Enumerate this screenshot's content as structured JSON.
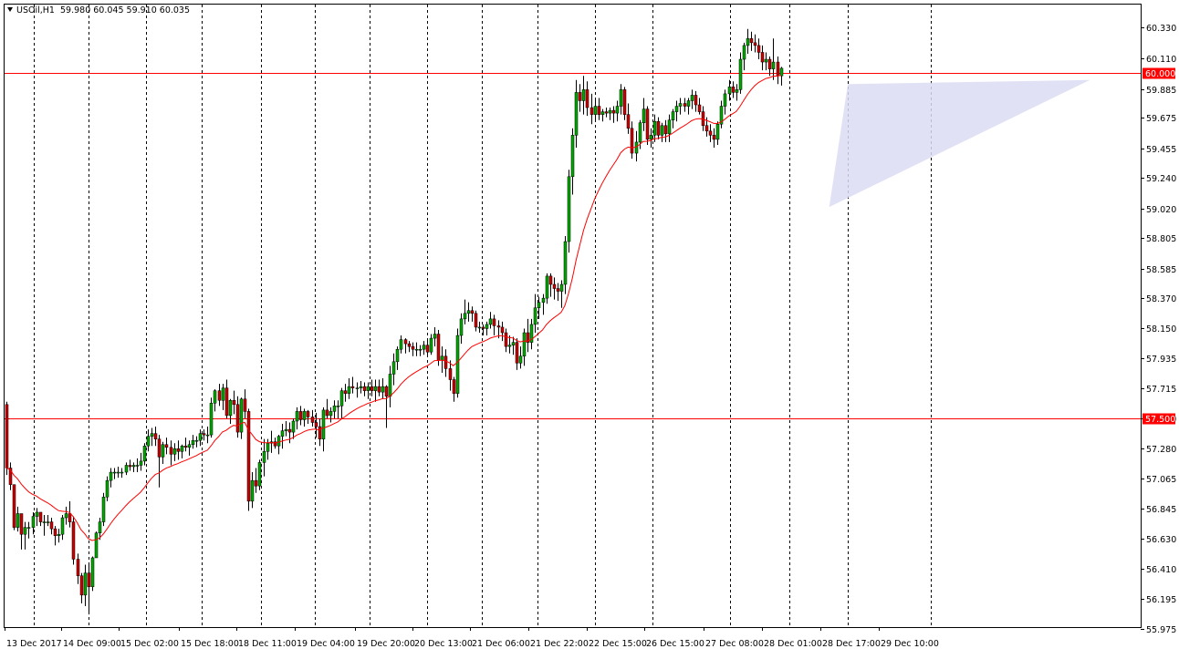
{
  "header": {
    "symbol": "USOil,H1",
    "ohlc": "59.980 60.045 59.910 60.035"
  },
  "colors": {
    "background": "#ffffff",
    "frame": "#000000",
    "bull_body": "#00a800",
    "bear_body": "#cc0000",
    "wick": "#000000",
    "moving_average": "#ff0000",
    "horizontal_line": "#ff0000",
    "triangle_fill": "#dcdcf5",
    "level_label_bg": "#ff0000",
    "level_label_text": "#ffffff"
  },
  "chart_data": {
    "type": "candlestick",
    "ylim": [
      55.975,
      60.45
    ],
    "y_ticks": [
      "60.330",
      "60.110",
      "59.885",
      "59.675",
      "59.455",
      "59.240",
      "59.020",
      "58.805",
      "58.585",
      "58.370",
      "58.150",
      "57.935",
      "57.715",
      "57.500",
      "57.280",
      "57.065",
      "56.845",
      "56.630",
      "56.410",
      "56.195",
      "55.975"
    ],
    "x_labels": [
      "13 Dec 2017",
      "14 Dec 09:00",
      "15 Dec 02:00",
      "15 Dec 18:00",
      "18 Dec 11:00",
      "19 Dec 04:00",
      "19 Dec 20:00",
      "20 Dec 13:00",
      "21 Dec 06:00",
      "21 Dec 22:00",
      "22 Dec 15:00",
      "26 Dec 15:00",
      "27 Dec 08:00",
      "28 Dec 01:00",
      "28 Dec 17:00",
      "29 Dec 10:00"
    ],
    "grid": "vertical dashed",
    "horizontal_levels": [
      {
        "value": 60.0,
        "label": "60.000"
      },
      {
        "value": 57.5,
        "label": "57.500"
      }
    ],
    "price_label_hidden": "60.035",
    "triangle": [
      [
        221,
        59.03
      ],
      [
        226,
        59.92
      ],
      [
        291,
        59.95
      ]
    ],
    "ma_period": 20,
    "candles": [
      [
        57.6,
        57.62,
        57.09,
        57.14
      ],
      [
        57.14,
        57.18,
        56.98,
        57.02
      ],
      [
        57.02,
        57.02,
        56.69,
        56.71
      ],
      [
        56.71,
        56.86,
        56.68,
        56.81
      ],
      [
        56.81,
        56.81,
        56.55,
        56.66
      ],
      [
        56.66,
        56.75,
        56.55,
        56.71
      ],
      [
        56.71,
        56.75,
        56.63,
        56.71
      ],
      [
        56.71,
        56.82,
        56.66,
        56.79
      ],
      [
        56.79,
        56.85,
        56.72,
        56.82
      ],
      [
        56.82,
        56.82,
        56.72,
        56.75
      ],
      [
        56.75,
        56.8,
        56.65,
        56.75
      ],
      [
        56.75,
        56.8,
        56.72,
        56.75
      ],
      [
        56.75,
        56.78,
        56.66,
        56.7
      ],
      [
        56.7,
        56.72,
        56.58,
        56.65
      ],
      [
        56.65,
        56.7,
        56.6,
        56.66
      ],
      [
        56.66,
        56.8,
        56.62,
        56.78
      ],
      [
        56.78,
        56.86,
        56.73,
        56.81
      ],
      [
        56.81,
        56.9,
        56.71,
        56.75
      ],
      [
        56.75,
        56.79,
        56.44,
        56.48
      ],
      [
        56.48,
        56.52,
        56.3,
        56.36
      ],
      [
        56.36,
        56.38,
        56.16,
        56.22
      ],
      [
        56.22,
        56.44,
        56.14,
        56.38
      ],
      [
        56.38,
        56.44,
        56.08,
        56.28
      ],
      [
        56.28,
        56.5,
        56.25,
        56.49
      ],
      [
        56.49,
        56.68,
        56.49,
        56.67
      ],
      [
        56.67,
        56.78,
        56.62,
        56.75
      ],
      [
        56.75,
        56.96,
        56.72,
        56.93
      ],
      [
        56.93,
        57.08,
        56.9,
        57.05
      ],
      [
        57.05,
        57.14,
        57.0,
        57.11
      ],
      [
        57.11,
        57.14,
        57.06,
        57.11
      ],
      [
        57.11,
        57.15,
        57.07,
        57.11
      ],
      [
        57.11,
        57.14,
        57.07,
        57.11
      ],
      [
        57.11,
        57.18,
        57.09,
        57.16
      ],
      [
        57.16,
        57.2,
        57.12,
        57.15
      ],
      [
        57.15,
        57.18,
        57.11,
        57.16
      ],
      [
        57.16,
        57.21,
        57.11,
        57.16
      ],
      [
        57.16,
        57.25,
        57.12,
        57.19
      ],
      [
        57.19,
        57.32,
        57.16,
        57.3
      ],
      [
        57.3,
        57.42,
        57.26,
        57.37
      ],
      [
        57.37,
        57.43,
        57.3,
        57.39
      ],
      [
        57.39,
        57.44,
        57.3,
        57.35
      ],
      [
        57.35,
        57.38,
        57.0,
        57.22
      ],
      [
        57.22,
        57.33,
        57.17,
        57.31
      ],
      [
        57.31,
        57.36,
        57.24,
        57.29
      ],
      [
        57.29,
        57.34,
        57.16,
        57.24
      ],
      [
        57.24,
        57.32,
        57.19,
        57.28
      ],
      [
        57.28,
        57.34,
        57.2,
        57.26
      ],
      [
        57.26,
        57.31,
        57.21,
        57.3
      ],
      [
        57.3,
        57.36,
        57.26,
        57.29
      ],
      [
        57.29,
        57.34,
        57.23,
        57.31
      ],
      [
        57.31,
        57.38,
        57.28,
        57.34
      ],
      [
        57.34,
        57.37,
        57.29,
        57.34
      ],
      [
        57.34,
        57.42,
        57.3,
        57.39
      ],
      [
        57.39,
        57.42,
        57.34,
        57.38
      ],
      [
        57.38,
        57.44,
        57.32,
        57.38
      ],
      [
        57.38,
        57.65,
        57.36,
        57.61
      ],
      [
        57.61,
        57.71,
        57.55,
        57.7
      ],
      [
        57.7,
        57.75,
        57.59,
        57.63
      ],
      [
        57.63,
        57.75,
        57.56,
        57.72
      ],
      [
        57.72,
        57.78,
        57.5,
        57.52
      ],
      [
        57.52,
        57.64,
        57.46,
        57.63
      ],
      [
        57.63,
        57.7,
        57.53,
        57.6
      ],
      [
        57.6,
        57.66,
        57.36,
        57.4
      ],
      [
        57.4,
        57.65,
        57.35,
        57.64
      ],
      [
        57.64,
        57.71,
        57.5,
        57.55
      ],
      [
        57.55,
        57.57,
        56.83,
        56.9
      ],
      [
        56.9,
        57.11,
        56.85,
        57.05
      ],
      [
        57.05,
        57.14,
        56.96,
        57.01
      ],
      [
        57.01,
        57.2,
        56.98,
        57.18
      ],
      [
        57.18,
        57.35,
        57.08,
        57.26
      ],
      [
        57.26,
        57.35,
        57.2,
        57.32
      ],
      [
        57.32,
        57.41,
        57.25,
        57.33
      ],
      [
        57.33,
        57.36,
        57.28,
        57.3
      ],
      [
        57.3,
        57.38,
        57.24,
        57.37
      ],
      [
        57.37,
        57.46,
        57.28,
        57.41
      ],
      [
        57.41,
        57.48,
        57.37,
        57.42
      ],
      [
        57.42,
        57.47,
        57.32,
        57.4
      ],
      [
        57.4,
        57.5,
        57.35,
        57.48
      ],
      [
        57.48,
        57.58,
        57.42,
        57.55
      ],
      [
        57.55,
        57.59,
        57.45,
        57.49
      ],
      [
        57.49,
        57.57,
        57.44,
        57.55
      ],
      [
        57.55,
        57.56,
        57.46,
        57.51
      ],
      [
        57.51,
        57.56,
        57.44,
        57.47
      ],
      [
        57.47,
        57.54,
        57.36,
        57.44
      ],
      [
        57.44,
        57.5,
        57.3,
        57.35
      ],
      [
        57.35,
        57.58,
        57.26,
        57.56
      ],
      [
        57.56,
        57.64,
        57.5,
        57.52
      ],
      [
        57.52,
        57.58,
        57.47,
        57.55
      ],
      [
        57.55,
        57.63,
        57.5,
        57.59
      ],
      [
        57.59,
        57.63,
        57.5,
        57.59
      ],
      [
        57.59,
        57.72,
        57.5,
        57.7
      ],
      [
        57.7,
        57.75,
        57.62,
        57.68
      ],
      [
        57.68,
        57.79,
        57.64,
        57.73
      ],
      [
        57.73,
        57.8,
        57.68,
        57.72
      ],
      [
        57.72,
        57.76,
        57.65,
        57.72
      ],
      [
        57.72,
        57.77,
        57.68,
        57.73
      ],
      [
        57.73,
        57.76,
        57.66,
        57.7
      ],
      [
        57.7,
        57.76,
        57.64,
        57.73
      ],
      [
        57.73,
        57.78,
        57.66,
        57.7
      ],
      [
        57.7,
        57.78,
        57.62,
        57.73
      ],
      [
        57.73,
        57.78,
        57.66,
        57.69
      ],
      [
        57.69,
        57.79,
        57.64,
        57.73
      ],
      [
        57.73,
        57.74,
        57.43,
        57.66
      ],
      [
        57.66,
        57.88,
        57.58,
        57.82
      ],
      [
        57.82,
        57.97,
        57.74,
        57.91
      ],
      [
        57.91,
        58.02,
        57.85,
        58.0
      ],
      [
        58.0,
        58.1,
        57.97,
        58.07
      ],
      [
        58.07,
        58.08,
        57.97,
        58.04
      ],
      [
        58.04,
        58.06,
        57.98,
        58.02
      ],
      [
        58.02,
        58.05,
        57.95,
        58.0
      ],
      [
        58.0,
        58.05,
        57.95,
        58.0
      ],
      [
        58.0,
        58.03,
        57.95,
        58.0
      ],
      [
        58.0,
        58.06,
        57.96,
        58.03
      ],
      [
        58.03,
        58.07,
        57.95,
        57.98
      ],
      [
        57.98,
        58.11,
        57.96,
        58.08
      ],
      [
        58.08,
        58.16,
        58.02,
        58.11
      ],
      [
        58.11,
        58.14,
        57.88,
        57.92
      ],
      [
        57.92,
        58.02,
        57.83,
        57.95
      ],
      [
        57.95,
        58.0,
        57.8,
        57.86
      ],
      [
        57.86,
        57.92,
        57.7,
        57.78
      ],
      [
        57.78,
        57.8,
        57.62,
        57.68
      ],
      [
        57.68,
        58.15,
        57.65,
        58.1
      ],
      [
        58.1,
        58.26,
        58.04,
        58.22
      ],
      [
        58.22,
        58.36,
        58.18,
        58.26
      ],
      [
        58.26,
        58.34,
        58.2,
        58.28
      ],
      [
        58.28,
        58.31,
        58.2,
        58.26
      ],
      [
        58.26,
        58.28,
        58.13,
        58.16
      ],
      [
        58.16,
        58.2,
        58.12,
        58.16
      ],
      [
        58.16,
        58.18,
        58.1,
        58.15
      ],
      [
        58.15,
        58.2,
        58.1,
        58.18
      ],
      [
        58.18,
        58.27,
        58.15,
        58.22
      ],
      [
        58.22,
        58.25,
        58.1,
        58.17
      ],
      [
        58.17,
        58.21,
        58.08,
        58.16
      ],
      [
        58.16,
        58.2,
        58.06,
        58.12
      ],
      [
        58.12,
        58.15,
        57.98,
        58.02
      ],
      [
        58.02,
        58.1,
        57.97,
        58.03
      ],
      [
        58.03,
        58.09,
        57.96,
        58.05
      ],
      [
        58.05,
        58.08,
        57.85,
        57.9
      ],
      [
        57.9,
        58.02,
        57.86,
        57.95
      ],
      [
        57.95,
        58.15,
        57.88,
        58.12
      ],
      [
        58.12,
        58.22,
        57.98,
        58.05
      ],
      [
        58.05,
        58.22,
        58.0,
        58.18
      ],
      [
        58.18,
        58.4,
        58.12,
        58.3
      ],
      [
        58.3,
        58.38,
        58.22,
        58.34
      ],
      [
        58.34,
        58.4,
        58.25,
        58.37
      ],
      [
        58.37,
        58.55,
        58.33,
        58.53
      ],
      [
        58.53,
        58.55,
        58.38,
        58.47
      ],
      [
        58.47,
        58.52,
        58.36,
        58.44
      ],
      [
        58.44,
        58.48,
        58.35,
        58.42
      ],
      [
        58.42,
        58.5,
        58.3,
        58.47
      ],
      [
        58.47,
        58.82,
        58.4,
        58.78
      ],
      [
        58.78,
        59.3,
        58.7,
        59.25
      ],
      [
        59.25,
        59.6,
        59.12,
        59.55
      ],
      [
        59.55,
        59.95,
        59.46,
        59.86
      ],
      [
        59.86,
        59.92,
        59.72,
        59.8
      ],
      [
        59.8,
        59.98,
        59.7,
        59.88
      ],
      [
        59.88,
        59.94,
        59.69,
        59.75
      ],
      [
        59.75,
        59.85,
        59.63,
        59.7
      ],
      [
        59.7,
        59.82,
        59.66,
        59.76
      ],
      [
        59.76,
        59.82,
        59.66,
        59.7
      ],
      [
        59.7,
        59.74,
        59.65,
        59.72
      ],
      [
        59.72,
        59.75,
        59.68,
        59.71
      ],
      [
        59.71,
        59.75,
        59.66,
        59.73
      ],
      [
        59.73,
        59.76,
        59.64,
        59.71
      ],
      [
        59.71,
        59.8,
        59.65,
        59.76
      ],
      [
        59.76,
        59.92,
        59.7,
        59.88
      ],
      [
        59.88,
        59.9,
        59.66,
        59.7
      ],
      [
        59.7,
        59.78,
        59.56,
        59.6
      ],
      [
        59.6,
        59.65,
        59.38,
        59.42
      ],
      [
        59.42,
        59.58,
        59.36,
        59.5
      ],
      [
        59.5,
        59.66,
        59.45,
        59.64
      ],
      [
        59.64,
        59.82,
        59.58,
        59.74
      ],
      [
        59.74,
        59.76,
        59.48,
        59.52
      ],
      [
        59.52,
        59.6,
        59.46,
        59.55
      ],
      [
        59.55,
        59.7,
        59.5,
        59.65
      ],
      [
        59.65,
        59.68,
        59.52,
        59.55
      ],
      [
        59.55,
        59.64,
        59.5,
        59.62
      ],
      [
        59.62,
        59.66,
        59.5,
        59.56
      ],
      [
        59.56,
        59.7,
        59.5,
        59.66
      ],
      [
        59.66,
        59.74,
        59.6,
        59.72
      ],
      [
        59.72,
        59.8,
        59.65,
        59.76
      ],
      [
        59.76,
        59.82,
        59.7,
        59.78
      ],
      [
        59.78,
        59.82,
        59.72,
        59.76
      ],
      [
        59.76,
        59.82,
        59.7,
        59.8
      ],
      [
        59.8,
        59.88,
        59.74,
        59.84
      ],
      [
        59.84,
        59.87,
        59.72,
        59.77
      ],
      [
        59.77,
        59.82,
        59.7,
        59.72
      ],
      [
        59.72,
        59.76,
        59.58,
        59.62
      ],
      [
        59.62,
        59.68,
        59.54,
        59.58
      ],
      [
        59.58,
        59.63,
        59.5,
        59.55
      ],
      [
        59.55,
        59.6,
        59.46,
        59.52
      ],
      [
        59.52,
        59.65,
        59.48,
        59.63
      ],
      [
        59.63,
        59.8,
        59.6,
        59.76
      ],
      [
        59.76,
        59.88,
        59.7,
        59.85
      ],
      [
        59.85,
        59.95,
        59.8,
        59.9
      ],
      [
        59.9,
        59.94,
        59.82,
        59.86
      ],
      [
        59.86,
        59.92,
        59.8,
        59.88
      ],
      [
        59.88,
        60.15,
        59.85,
        60.1
      ],
      [
        60.1,
        60.22,
        60.02,
        60.2
      ],
      [
        60.2,
        60.32,
        60.14,
        60.25
      ],
      [
        60.25,
        60.3,
        60.16,
        60.22
      ],
      [
        60.22,
        60.28,
        60.15,
        60.2
      ],
      [
        60.2,
        60.25,
        60.1,
        60.15
      ],
      [
        60.15,
        60.2,
        60.02,
        60.08
      ],
      [
        60.08,
        60.15,
        60.02,
        60.1
      ],
      [
        60.1,
        60.12,
        59.98,
        60.03
      ],
      [
        60.03,
        60.25,
        59.95,
        60.08
      ],
      [
        60.08,
        60.12,
        59.92,
        59.98
      ],
      [
        59.98,
        60.045,
        59.91,
        60.035
      ]
    ]
  }
}
